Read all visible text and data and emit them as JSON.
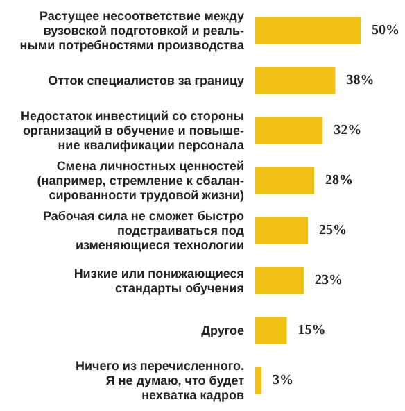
{
  "chart_data": {
    "type": "bar",
    "orientation": "horizontal",
    "categories": [
      "Растущее несоответствие между\nвузовской подготовкой и реаль-\nными потребностями производства",
      "Отток специалистов за границу",
      "Недостаток инвестиций со стороны\nорганизаций в обучение и повыше-\nние квалификации персонала",
      "Смена личностных ценностей\n(например, стремление к сбалан-\nсированности трудовой жизни)",
      "Рабочая сила не сможет быстро\nподстраиваться под\nизменяющиеся технологии",
      "Низкие или понижающиеся\nстандарты обучения",
      "Другое",
      "Ничего из перечисленного.\nЯ не думаю, что будет\nнехватка кадров"
    ],
    "values": [
      50,
      38,
      32,
      28,
      25,
      23,
      15,
      3
    ],
    "value_labels": [
      "50%",
      "38%",
      "32%",
      "28%",
      "25%",
      "23%",
      "15%",
      "3%"
    ],
    "color": "#f0c114",
    "grid": false
  }
}
